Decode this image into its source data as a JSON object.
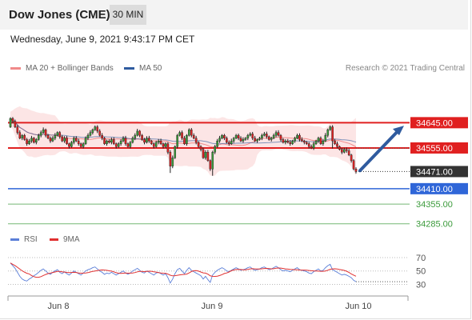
{
  "header": {
    "title": "Dow Jones (CME)",
    "interval": "30 MIN"
  },
  "datetime": "Wednesday, June 9, 2021 9:43:17 PM CET",
  "legend": [
    {
      "label": "MA 20 + Bollinger Bands",
      "color": "#f08a8a"
    },
    {
      "label": "MA 50",
      "color": "#2f5b9f"
    }
  ],
  "credit": "Research © 2021 Trading Central",
  "rsi_legend": [
    {
      "label": "RSI",
      "color": "#5b7fd8"
    },
    {
      "label": "9MA",
      "color": "#e03030"
    }
  ],
  "chart_data": [
    {
      "type": "candlestick",
      "x_ticks": [
        "Jun 8",
        "Jun 9",
        "Jun 10"
      ],
      "ylim": [
        34270,
        34740
      ],
      "levels": [
        {
          "value": 34645.0,
          "label": "34645.00",
          "kind": "resistance",
          "color": "#e02020"
        },
        {
          "value": 34555.0,
          "label": "34555.00",
          "kind": "resistance",
          "color": "#e02020"
        },
        {
          "value": 34471.0,
          "label": "34471.00",
          "kind": "last",
          "color": "#333333"
        },
        {
          "value": 34410.0,
          "label": "34410.00",
          "kind": "support",
          "color": "#2f66d8"
        },
        {
          "value": 34355.0,
          "label": "34355.00",
          "kind": "target",
          "color": "#3a9a3a"
        },
        {
          "value": 34285.0,
          "label": "34285.00",
          "kind": "target",
          "color": "#3a9a3a"
        }
      ],
      "closes": [
        34660,
        34650,
        34630,
        34610,
        34590,
        34600,
        34585,
        34570,
        34580,
        34590,
        34575,
        34585,
        34600,
        34610,
        34620,
        34600,
        34590,
        34580,
        34590,
        34600,
        34610,
        34595,
        34580,
        34590,
        34570,
        34560,
        34575,
        34590,
        34580,
        34570,
        34560,
        34570,
        34590,
        34600,
        34610,
        34620,
        34630,
        34615,
        34600,
        34590,
        34570,
        34580,
        34575,
        34585,
        34570,
        34560,
        34570,
        34580,
        34590,
        34570,
        34560,
        34575,
        34590,
        34600,
        34615,
        34600,
        34585,
        34575,
        34590,
        34580,
        34570,
        34560,
        34575,
        34580,
        34570,
        34560,
        34570,
        34540,
        34490,
        34520,
        34560,
        34600,
        34610,
        34590,
        34570,
        34600,
        34620,
        34600,
        34590,
        34575,
        34560,
        34550,
        34520,
        34540,
        34510,
        34480,
        34540,
        34560,
        34580,
        34590,
        34600,
        34590,
        34575,
        34570,
        34580,
        34590,
        34600,
        34590,
        34580,
        34585,
        34590,
        34600,
        34605,
        34590,
        34580,
        34585,
        34590,
        34600,
        34605,
        34595,
        34585,
        34590,
        34600,
        34610,
        34600,
        34585,
        34575,
        34580,
        34575,
        34570,
        34580,
        34590,
        34600,
        34585,
        34580,
        34575,
        34570,
        34560,
        34555,
        34570,
        34580,
        34590,
        34570,
        34580,
        34600,
        34620,
        34630,
        34580,
        34570,
        34560,
        34550,
        34540,
        34550,
        34545,
        34530,
        34510,
        34480,
        34471
      ],
      "arrow": {
        "from": 34480,
        "to": 34640,
        "direction": "up"
      }
    },
    {
      "type": "line",
      "title": "RSI",
      "y_ticks": [
        70,
        50,
        30
      ],
      "ylim": [
        15,
        82
      ],
      "series": [
        {
          "name": "RSI",
          "color": "#5b7fd8"
        },
        {
          "name": "9MA",
          "color": "#e03030"
        }
      ],
      "rsi": [
        62,
        58,
        54,
        48,
        42,
        38,
        36,
        35,
        38,
        40,
        43,
        45,
        48,
        51,
        53,
        50,
        47,
        45,
        48,
        50,
        52,
        48,
        46,
        49,
        46,
        44,
        47,
        50,
        48,
        46,
        44,
        47,
        50,
        52,
        53,
        55,
        56,
        53,
        50,
        48,
        45,
        47,
        46,
        48,
        46,
        44,
        46,
        48,
        50,
        47,
        45,
        47,
        50,
        52,
        54,
        51,
        48,
        47,
        50,
        48,
        46,
        44,
        47,
        48,
        46,
        44,
        46,
        40,
        32,
        38,
        46,
        52,
        54,
        50,
        46,
        51,
        55,
        51,
        49,
        47,
        45,
        43,
        38,
        42,
        37,
        33,
        44,
        48,
        51,
        53,
        55,
        53,
        50,
        49,
        51,
        53,
        55,
        53,
        51,
        52,
        53,
        55,
        56,
        53,
        51,
        52,
        53,
        55,
        56,
        54,
        52,
        53,
        55,
        57,
        55,
        52,
        50,
        51,
        50,
        49,
        51,
        53,
        55,
        52,
        51,
        50,
        49,
        47,
        46,
        49,
        51,
        53,
        50,
        51,
        55,
        58,
        60,
        52,
        50,
        48,
        46,
        44,
        45,
        44,
        42,
        40,
        36,
        34
      ]
    }
  ]
}
